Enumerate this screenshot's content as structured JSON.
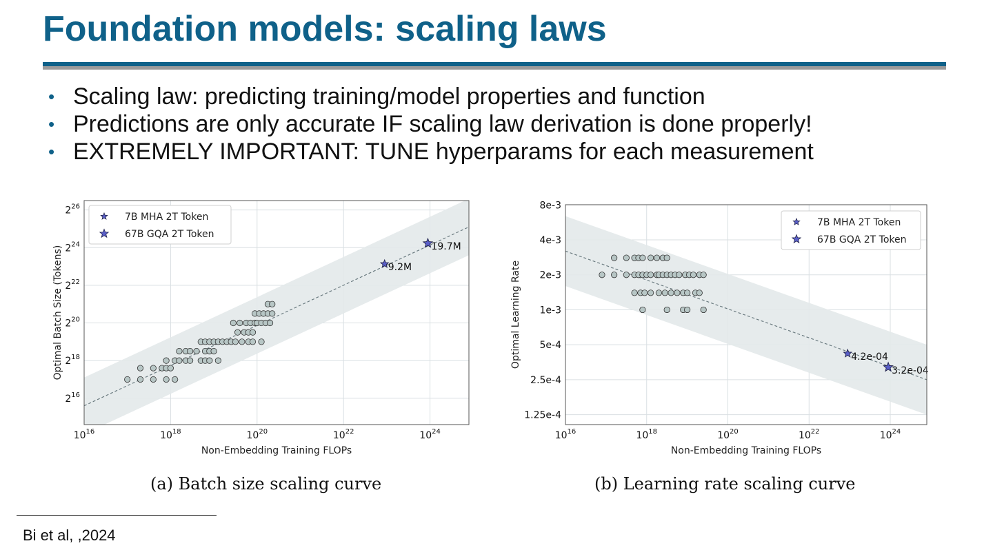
{
  "slide": {
    "title": "Foundation models: scaling laws",
    "bullets": [
      "Scaling law: predicting training/model properties and function",
      "Predictions are only accurate IF scaling law derivation is done properly!",
      "EXTREMELY IMPORTANT: TUNE hyperparams for each measurement"
    ],
    "footnote": "Bi et al, ,2024",
    "colors": {
      "title": "#0f6189",
      "rule_blue": "#0f6189",
      "rule_gray": "#9b9b9b"
    }
  },
  "chart_data": [
    {
      "type": "scatter",
      "caption": "(a)  Batch size scaling curve",
      "xlabel": "Non-Embedding Training FLOPs",
      "ylabel": "Optimal Batch Size (Tokens)",
      "x_scale": "log10",
      "y_scale": "log2",
      "xlim_exp": [
        16,
        24.9
      ],
      "ylim_exp": [
        14.6,
        26.5
      ],
      "x_ticks": [
        {
          "base": "10",
          "exp": "16",
          "v": 16
        },
        {
          "base": "10",
          "exp": "18",
          "v": 18
        },
        {
          "base": "10",
          "exp": "20",
          "v": 20
        },
        {
          "base": "10",
          "exp": "22",
          "v": 22
        },
        {
          "base": "10",
          "exp": "24",
          "v": 24
        }
      ],
      "y_ticks": [
        {
          "base": "2",
          "exp": "16",
          "v": 16
        },
        {
          "base": "2",
          "exp": "18",
          "v": 18
        },
        {
          "base": "2",
          "exp": "20",
          "v": 20
        },
        {
          "base": "2",
          "exp": "22",
          "v": 22
        },
        {
          "base": "2",
          "exp": "24",
          "v": 24
        },
        {
          "base": "2",
          "exp": "26",
          "v": 26
        }
      ],
      "grid": true,
      "legend_position": "top-left",
      "legend": [
        {
          "name": "7B MHA 2T Token",
          "marker": "star-small"
        },
        {
          "name": "67B GQA 2T Token",
          "marker": "star-large"
        }
      ],
      "fit_line": {
        "x_exp": [
          16,
          24.9
        ],
        "y_exp": [
          15.6,
          25.1
        ]
      },
      "band_halfwidth_exp": 1.5,
      "points": [
        [
          17.0,
          17.0
        ],
        [
          17.3,
          17.0
        ],
        [
          17.3,
          17.6
        ],
        [
          17.6,
          17.0
        ],
        [
          17.6,
          17.6
        ],
        [
          17.8,
          17.6
        ],
        [
          17.9,
          17.0
        ],
        [
          17.9,
          17.6
        ],
        [
          17.9,
          18.0
        ],
        [
          18.0,
          17.6
        ],
        [
          18.1,
          17.0
        ],
        [
          18.1,
          18.0
        ],
        [
          18.2,
          18.0
        ],
        [
          18.2,
          18.5
        ],
        [
          18.35,
          18.0
        ],
        [
          18.35,
          18.5
        ],
        [
          18.45,
          18.0
        ],
        [
          18.45,
          18.5
        ],
        [
          18.6,
          18.5
        ],
        [
          18.7,
          18.0
        ],
        [
          18.7,
          19.0
        ],
        [
          18.8,
          18.0
        ],
        [
          18.8,
          18.5
        ],
        [
          18.8,
          19.0
        ],
        [
          18.9,
          18.0
        ],
        [
          18.9,
          18.5
        ],
        [
          18.9,
          19.0
        ],
        [
          19.0,
          18.5
        ],
        [
          19.0,
          19.0
        ],
        [
          19.1,
          18.0
        ],
        [
          19.1,
          19.0
        ],
        [
          19.2,
          19.0
        ],
        [
          19.3,
          19.0
        ],
        [
          19.4,
          19.0
        ],
        [
          19.45,
          20.0
        ],
        [
          19.5,
          19.0
        ],
        [
          19.55,
          19.5
        ],
        [
          19.6,
          20.0
        ],
        [
          19.65,
          19.0
        ],
        [
          19.7,
          19.5
        ],
        [
          19.75,
          20.0
        ],
        [
          19.8,
          19.0
        ],
        [
          19.8,
          19.5
        ],
        [
          19.85,
          20.0
        ],
        [
          19.9,
          19.0
        ],
        [
          19.9,
          19.5
        ],
        [
          19.95,
          20.0
        ],
        [
          19.95,
          20.5
        ],
        [
          20.0,
          20.0
        ],
        [
          20.05,
          20.5
        ],
        [
          20.1,
          19.0
        ],
        [
          20.1,
          20.0
        ],
        [
          20.15,
          20.5
        ],
        [
          20.2,
          20.0
        ],
        [
          20.25,
          20.5
        ],
        [
          20.25,
          21.0
        ],
        [
          20.3,
          20.0
        ],
        [
          20.35,
          20.5
        ],
        [
          20.35,
          21.0
        ]
      ],
      "highlighted": [
        {
          "series": "7B MHA 2T Token",
          "x_exp": 22.95,
          "y_exp": 23.13,
          "label": "9.2M"
        },
        {
          "series": "67B GQA 2T Token",
          "x_exp": 23.95,
          "y_exp": 24.23,
          "label": "19.7M"
        }
      ]
    },
    {
      "type": "scatter",
      "caption": "(b)  Learning rate scaling curve",
      "xlabel": "Non-Embedding Training FLOPs",
      "ylabel": "Optimal Learning Rate",
      "x_scale": "log10",
      "y_scale": "log2",
      "xlim_exp": [
        16,
        24.9
      ],
      "ylim_exp": [
        -13.25,
        -6.96
      ],
      "x_ticks": [
        {
          "base": "10",
          "exp": "16",
          "v": 16
        },
        {
          "base": "10",
          "exp": "18",
          "v": 18
        },
        {
          "base": "10",
          "exp": "20",
          "v": 20
        },
        {
          "base": "10",
          "exp": "22",
          "v": 22
        },
        {
          "base": "10",
          "exp": "24",
          "v": 24
        }
      ],
      "y_ticks": [
        {
          "label": "8e-3",
          "v": 0.008
        },
        {
          "label": "4e-3",
          "v": 0.004
        },
        {
          "label": "2e-3",
          "v": 0.002
        },
        {
          "label": "1e-3",
          "v": 0.001
        },
        {
          "label": "5e-4",
          "v": 0.0005
        },
        {
          "label": "2.5e-4",
          "v": 0.00025
        },
        {
          "label": "1.25e-4",
          "v": 0.000125
        }
      ],
      "grid": true,
      "legend_position": "top-right",
      "legend": [
        {
          "name": "7B MHA 2T Token",
          "marker": "star-small"
        },
        {
          "name": "67B GQA 2T Token",
          "marker": "star-large"
        }
      ],
      "fit_line": {
        "x_exp": [
          16,
          24.9
        ],
        "y": [
          0.0032,
          0.00025
        ]
      },
      "band_factor": 2.0,
      "points": [
        [
          16.9,
          0.002
        ],
        [
          17.2,
          0.0028
        ],
        [
          17.2,
          0.002
        ],
        [
          17.5,
          0.0028
        ],
        [
          17.5,
          0.002
        ],
        [
          17.7,
          0.0028
        ],
        [
          17.7,
          0.002
        ],
        [
          17.7,
          0.0014
        ],
        [
          17.8,
          0.0028
        ],
        [
          17.8,
          0.002
        ],
        [
          17.85,
          0.0014
        ],
        [
          17.9,
          0.0028
        ],
        [
          17.9,
          0.002
        ],
        [
          17.9,
          0.001
        ],
        [
          17.95,
          0.0014
        ],
        [
          18.0,
          0.002
        ],
        [
          18.1,
          0.0028
        ],
        [
          18.1,
          0.002
        ],
        [
          18.1,
          0.0014
        ],
        [
          18.25,
          0.0028
        ],
        [
          18.25,
          0.002
        ],
        [
          18.3,
          0.0014
        ],
        [
          18.3,
          0.002
        ],
        [
          18.4,
          0.0028
        ],
        [
          18.4,
          0.002
        ],
        [
          18.45,
          0.0014
        ],
        [
          18.5,
          0.0028
        ],
        [
          18.5,
          0.002
        ],
        [
          18.5,
          0.001
        ],
        [
          18.6,
          0.002
        ],
        [
          18.6,
          0.0014
        ],
        [
          18.7,
          0.002
        ],
        [
          18.75,
          0.0014
        ],
        [
          18.8,
          0.002
        ],
        [
          18.9,
          0.0014
        ],
        [
          18.9,
          0.001
        ],
        [
          18.95,
          0.002
        ],
        [
          19.0,
          0.0014
        ],
        [
          19.0,
          0.001
        ],
        [
          19.05,
          0.002
        ],
        [
          19.15,
          0.002
        ],
        [
          19.2,
          0.0014
        ],
        [
          19.3,
          0.0014
        ],
        [
          19.3,
          0.002
        ],
        [
          19.4,
          0.002
        ],
        [
          19.4,
          0.001
        ]
      ],
      "highlighted": [
        {
          "series": "7B MHA 2T Token",
          "x_exp": 22.95,
          "y": 0.00042,
          "label": "4.2e-04"
        },
        {
          "series": "67B GQA 2T Token",
          "x_exp": 23.95,
          "y": 0.00032,
          "label": "3.2e-04"
        }
      ]
    }
  ]
}
